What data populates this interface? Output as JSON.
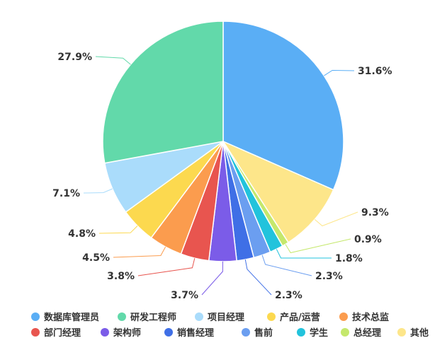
{
  "chart_data": {
    "type": "pie",
    "title": "",
    "legend_position": "bottom",
    "slices": [
      {
        "label": "数据库管理员",
        "value": 31.6,
        "value_label": "31.6%",
        "color": "#5aaef5"
      },
      {
        "label": "其他",
        "value": 9.3,
        "value_label": "9.3%",
        "color": "#fde68a"
      },
      {
        "label": "总经理",
        "value": 0.9,
        "value_label": "0.9%",
        "color": "#c5e86c"
      },
      {
        "label": "学生",
        "value": 1.8,
        "value_label": "1.8%",
        "color": "#22c3dc"
      },
      {
        "label": "售前",
        "value": 2.3,
        "value_label": "2.3%",
        "color": "#6b9ef0"
      },
      {
        "label": "销售经理",
        "value": 2.3,
        "value_label": "2.3%",
        "color": "#3f6fe6"
      },
      {
        "label": "架构师",
        "value": 3.7,
        "value_label": "3.7%",
        "color": "#7b5ce8"
      },
      {
        "label": "部门经理",
        "value": 3.8,
        "value_label": "3.8%",
        "color": "#e8554f"
      },
      {
        "label": "技术总监",
        "value": 4.5,
        "value_label": "4.5%",
        "color": "#fb9c4e"
      },
      {
        "label": "产品/运营",
        "value": 4.8,
        "value_label": "4.8%",
        "color": "#fcd94f"
      },
      {
        "label": "项目经理",
        "value": 7.1,
        "value_label": "7.1%",
        "color": "#aadcfb"
      },
      {
        "label": "研发工程师",
        "value": 27.9,
        "value_label": "27.9%",
        "color": "#62d9aa"
      }
    ],
    "legend_order": [
      "数据库管理员",
      "研发工程师",
      "项目经理",
      "产品/运营",
      "技术总监",
      "部门经理",
      "架构师",
      "销售经理",
      "售前",
      "学生",
      "总经理",
      "其他"
    ]
  }
}
